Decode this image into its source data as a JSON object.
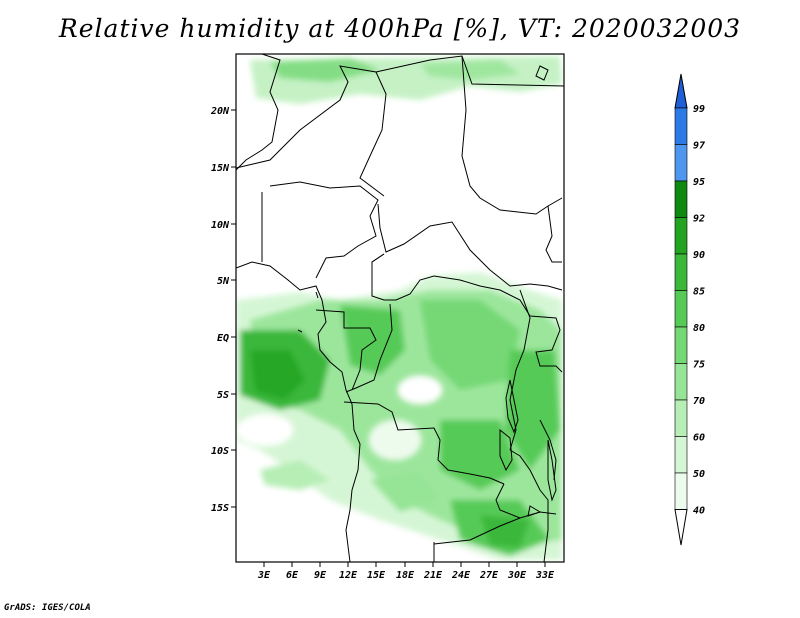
{
  "title": "Relative humidity at 400hPa [%], VT: 2020032003",
  "credit": "GrADS: IGES/COLA",
  "map": {
    "lat_labels": [
      "20N",
      "15N",
      "10N",
      "5N",
      "EQ",
      "5S",
      "10S",
      "15S"
    ],
    "lon_labels": [
      "3E",
      "6E",
      "9E",
      "12E",
      "15E",
      "18E",
      "21E",
      "24E",
      "27E",
      "30E",
      "33E"
    ]
  },
  "colorbar": {
    "levels": [
      "99",
      "97",
      "95",
      "92",
      "90",
      "85",
      "80",
      "75",
      "70",
      "60",
      "50",
      "40"
    ],
    "colors": [
      "#1f5fd6",
      "#2b7ae6",
      "#4f97ee",
      "#0e8a0e",
      "#22a322",
      "#3ab83a",
      "#56ca56",
      "#74d874",
      "#96e496",
      "#b6eeb6",
      "#d5f6d5",
      "#edfbed",
      "#ffffff"
    ]
  }
}
